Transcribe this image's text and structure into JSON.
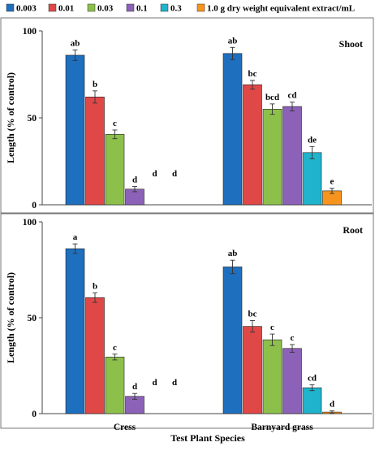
{
  "legend": [
    {
      "label": "0.003",
      "color": "#1f6fbf"
    },
    {
      "label": "0.01",
      "color": "#e04848"
    },
    {
      "label": "0.03",
      "color": "#8dc04a"
    },
    {
      "label": "0.1",
      "color": "#8c62b8"
    },
    {
      "label": "0.3",
      "color": "#1fb3cc"
    },
    {
      "label": "1.0 g dry weight equivalent extract/mL",
      "color": "#f7941d"
    }
  ],
  "chart_data": [
    {
      "type": "bar",
      "title": "Shoot",
      "ylabel": "Length (% of control)",
      "xlabel": "Test Plant Species",
      "ylim": [
        0,
        100
      ],
      "yticks": [
        "0",
        "50",
        "100"
      ],
      "categories": [
        "Cress",
        "Barnyard grass"
      ],
      "series": [
        {
          "name": "0.003",
          "values": [
            86,
            87
          ],
          "errors": [
            3,
            3.5
          ],
          "labels": [
            "ab",
            "ab"
          ]
        },
        {
          "name": "0.01",
          "values": [
            62,
            69
          ],
          "errors": [
            3.5,
            2.5
          ],
          "labels": [
            "b",
            "bc"
          ]
        },
        {
          "name": "0.03",
          "values": [
            40.5,
            55
          ],
          "errors": [
            2.5,
            3
          ],
          "labels": [
            "c",
            "bcd"
          ]
        },
        {
          "name": "0.1",
          "values": [
            9,
            56.5
          ],
          "errors": [
            1.5,
            2.5
          ],
          "labels": [
            "d",
            "cd"
          ]
        },
        {
          "name": "0.3",
          "values": [
            0,
            30
          ],
          "errors": [
            0,
            3.5
          ],
          "labels": [
            "d",
            "de"
          ]
        },
        {
          "name": "1.0 g dry weight equivalent extract/mL",
          "values": [
            0,
            8
          ],
          "errors": [
            0,
            1.5
          ],
          "labels": [
            "d",
            "e"
          ]
        }
      ]
    },
    {
      "type": "bar",
      "title": "Root",
      "ylabel": "Length (% of control)",
      "xlabel": "Test Plant Species",
      "ylim": [
        0,
        100
      ],
      "yticks": [
        "0",
        "50",
        "100"
      ],
      "categories": [
        "Cress",
        "Barnyard grass"
      ],
      "series": [
        {
          "name": "0.003",
          "values": [
            86,
            76.5
          ],
          "errors": [
            2.5,
            3.5
          ],
          "labels": [
            "a",
            "ab"
          ]
        },
        {
          "name": "0.01",
          "values": [
            60.5,
            45.5
          ],
          "errors": [
            2.5,
            3
          ],
          "labels": [
            "b",
            "bc"
          ]
        },
        {
          "name": "0.03",
          "values": [
            29.5,
            38.5
          ],
          "errors": [
            1.5,
            3
          ],
          "labels": [
            "c",
            "c"
          ]
        },
        {
          "name": "0.1",
          "values": [
            9,
            34
          ],
          "errors": [
            1.5,
            2
          ],
          "labels": [
            "d",
            "c"
          ]
        },
        {
          "name": "0.3",
          "values": [
            0,
            13.5
          ],
          "errors": [
            0,
            1.5
          ],
          "labels": [
            "d",
            "cd"
          ]
        },
        {
          "name": "1.0 g dry weight equivalent extract/mL",
          "values": [
            0,
            0.8
          ],
          "errors": [
            0,
            0.6
          ],
          "labels": [
            "d",
            "d"
          ]
        }
      ]
    }
  ]
}
